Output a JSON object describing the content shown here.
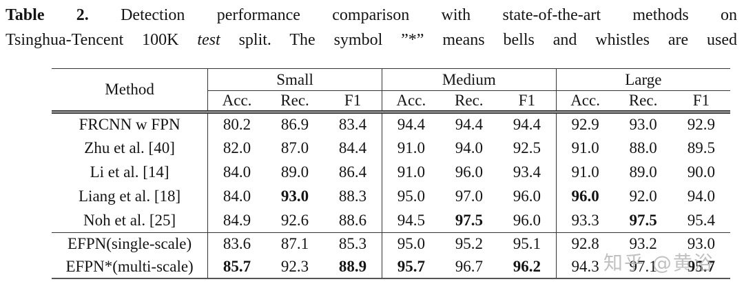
{
  "caption": {
    "label": "Table 2.",
    "line1": "Detection performance comparison with state-of-the-art methods on",
    "line2_start": "Tsinghua-Tencent 100K",
    "line2_italic": "test",
    "line2_end": "split. The symbol ”*” means bells and whistles are used"
  },
  "table": {
    "corner_header": "Method",
    "groups": [
      {
        "label": "Small"
      },
      {
        "label": "Medium"
      },
      {
        "label": "Large"
      }
    ],
    "subheaders": [
      "Acc.",
      "Rec.",
      "F1",
      "Acc.",
      "Rec.",
      "F1",
      "Acc.",
      "Rec.",
      "F1"
    ],
    "rows": [
      {
        "method": "FRCNN w FPN",
        "values": [
          "80.2",
          "86.9",
          "83.4",
          "94.4",
          "94.4",
          "94.4",
          "92.9",
          "93.0",
          "92.9"
        ],
        "bold": []
      },
      {
        "method": "Zhu et al. [40]",
        "values": [
          "82.0",
          "87.0",
          "84.4",
          "91.0",
          "94.0",
          "92.5",
          "91.0",
          "88.0",
          "89.5"
        ],
        "bold": []
      },
      {
        "method": "Li et al. [14]",
        "values": [
          "84.0",
          "89.0",
          "86.4",
          "91.0",
          "96.0",
          "93.4",
          "91.0",
          "89.0",
          "90.0"
        ],
        "bold": []
      },
      {
        "method": "Liang et al. [18]",
        "values": [
          "84.0",
          "93.0",
          "88.3",
          "95.0",
          "97.0",
          "96.0",
          "96.0",
          "92.0",
          "94.0"
        ],
        "bold": [
          1,
          6
        ]
      },
      {
        "method": "Noh et al. [25]",
        "values": [
          "84.9",
          "92.6",
          "88.6",
          "94.5",
          "97.5",
          "96.0",
          "93.3",
          "97.5",
          "95.4"
        ],
        "bold": [
          4,
          7
        ]
      },
      {
        "method": "EFPN(single-scale)",
        "values": [
          "83.6",
          "87.1",
          "85.3",
          "95.0",
          "95.2",
          "95.1",
          "92.8",
          "93.2",
          "93.0"
        ],
        "bold": [],
        "separator_above": true
      },
      {
        "method": "EFPN*(multi-scale)",
        "values": [
          "85.7",
          "92.3",
          "88.9",
          "95.7",
          "96.7",
          "96.2",
          "94.3",
          "97.1",
          "95.7"
        ],
        "bold": [
          0,
          2,
          3,
          5,
          8
        ]
      }
    ]
  },
  "watermark": "知乎 @黄浴"
}
